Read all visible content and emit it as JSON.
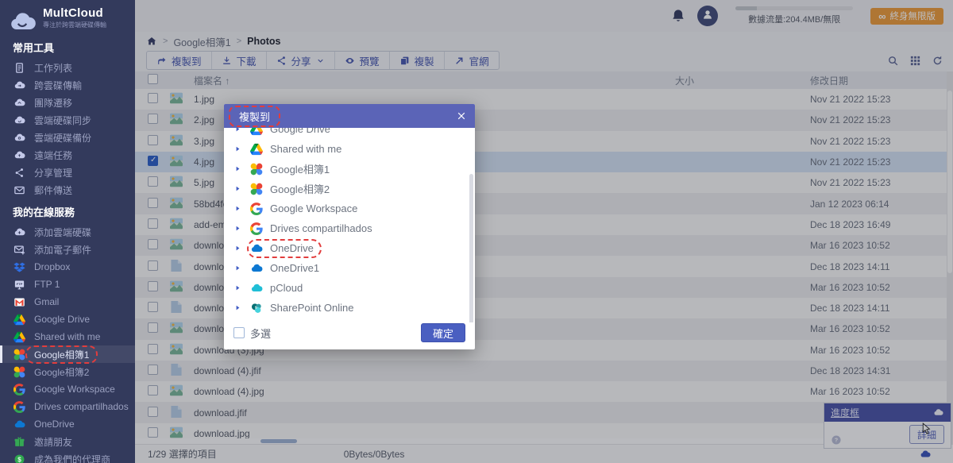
{
  "colors": {
    "sidebar_bg": "#333a5c",
    "accent_blue": "#4a5fc1",
    "modal_header": "#5b64b7",
    "annotation_red": "#e23d3d",
    "upgrade_orange": "#ed9d3d",
    "selected_row": "#d5e2f4"
  },
  "sidebar": {
    "logo_title": "MultCloud",
    "logo_subtitle": "專注於跨雲端硬碟傳輸",
    "sections": [
      {
        "title": "常用工具",
        "items": [
          {
            "icon": "clipboard",
            "label": "工作列表"
          },
          {
            "icon": "cloud-transfer",
            "label": "跨雲碟傳輸"
          },
          {
            "icon": "cloud-migrate",
            "label": "團隊遷移"
          },
          {
            "icon": "cloud-sync",
            "label": "雲端硬碟同步"
          },
          {
            "icon": "cloud-backup",
            "label": "雲端硬碟備份"
          },
          {
            "icon": "cloud-task",
            "label": "遠端任務"
          },
          {
            "icon": "share-nodes",
            "label": "分享管理"
          },
          {
            "icon": "mail-send",
            "label": "郵件傳送"
          }
        ]
      },
      {
        "title": "我的在線服務",
        "items": [
          {
            "icon": "cloud-add",
            "label": "添加雲端硬碟"
          },
          {
            "icon": "mail-add",
            "label": "添加電子郵件"
          },
          {
            "icon": "dropbox",
            "label": "Dropbox"
          },
          {
            "icon": "ftp",
            "label": "FTP 1"
          },
          {
            "icon": "gmail",
            "label": "Gmail"
          },
          {
            "icon": "gdrive",
            "label": "Google Drive"
          },
          {
            "icon": "gdrive",
            "label": "Shared with me"
          },
          {
            "icon": "gphotos",
            "label": "Google相簿1",
            "active": true,
            "annotated": true
          },
          {
            "icon": "gphotos",
            "label": "Google相簿2"
          },
          {
            "icon": "g",
            "label": "Google Workspace"
          },
          {
            "icon": "g",
            "label": "Drives compartilhados"
          },
          {
            "icon": "onedrive",
            "label": "OneDrive"
          },
          {
            "icon": "gift",
            "label": "邀請朋友"
          },
          {
            "icon": "dollar",
            "label": "成為我們的代理商"
          }
        ]
      }
    ]
  },
  "topbar": {
    "traffic_text": "數據流量:204.4MB/無限",
    "upgrade_label": "終身無限版",
    "infinity_symbol": "∞"
  },
  "breadcrumb": {
    "parent": "Google相簿1",
    "current": "Photos",
    "separator": ">"
  },
  "toolbar": {
    "buttons": [
      {
        "icon": "copyto",
        "label": "複製到"
      },
      {
        "icon": "download",
        "label": "下載"
      },
      {
        "icon": "share",
        "label": "分享",
        "chevron": true
      },
      {
        "icon": "preview",
        "label": "預覽"
      },
      {
        "icon": "copy",
        "label": "複製"
      },
      {
        "icon": "site",
        "label": "官網"
      }
    ]
  },
  "table": {
    "headers": {
      "name": "檔案名",
      "sort_arrow": "↑",
      "size": "大小",
      "date": "修改日期"
    },
    "rows": [
      {
        "icon": "image",
        "name": "1.jpg",
        "date": "Nov 21 2022 15:23"
      },
      {
        "icon": "image",
        "name": "2.jpg",
        "date": "Nov 21 2022 15:23"
      },
      {
        "icon": "image",
        "name": "3.jpg",
        "date": "Nov 21 2022 15:23"
      },
      {
        "icon": "image",
        "name": "4.jpg",
        "date": "Nov 21 2022 15:23",
        "selected": true
      },
      {
        "icon": "image",
        "name": "5.jpg",
        "date": "Nov 21 2022 15:23"
      },
      {
        "icon": "image",
        "name": "58bd4fc9ebfccc1f2de419529bbf1a12.jpg",
        "date": "Jan 12 2023 06:14"
      },
      {
        "icon": "image",
        "name": "add-email.png",
        "date": "Dec 18 2023 16:49"
      },
      {
        "icon": "image",
        "name": "download (1)-ANIMATION.gif",
        "date": "Mar 16 2023 10:52"
      },
      {
        "icon": "file",
        "name": "download (1).jfif",
        "date": "Dec 18 2023 14:11"
      },
      {
        "icon": "image",
        "name": "download (1).jpg",
        "date": "Mar 16 2023 10:52"
      },
      {
        "icon": "file",
        "name": "download (2).jfif",
        "date": "Dec 18 2023 14:11"
      },
      {
        "icon": "image",
        "name": "download (2).jpg",
        "date": "Mar 16 2023 10:52"
      },
      {
        "icon": "image",
        "name": "download (3).jpg",
        "date": "Mar 16 2023 10:52"
      },
      {
        "icon": "file",
        "name": "download (4).jfif",
        "date": "Dec 18 2023 14:31"
      },
      {
        "icon": "image",
        "name": "download (4).jpg",
        "date": "Mar 16 2023 10:52"
      },
      {
        "icon": "file",
        "name": "download.jfif",
        "date": ""
      },
      {
        "icon": "image",
        "name": "download.jpg",
        "date": ""
      }
    ]
  },
  "modal": {
    "title": "複製到",
    "items": [
      {
        "icon": "gdrive",
        "label": "Google Drive",
        "clipped": true
      },
      {
        "icon": "gdrive",
        "label": "Shared with me"
      },
      {
        "icon": "gphotos",
        "label": "Google相簿1"
      },
      {
        "icon": "gphotos",
        "label": "Google相簿2"
      },
      {
        "icon": "g",
        "label": "Google Workspace"
      },
      {
        "icon": "g",
        "label": "Drives compartilhados"
      },
      {
        "icon": "onedrive",
        "label": "OneDrive",
        "annotated": true
      },
      {
        "icon": "onedrive",
        "label": "OneDrive1"
      },
      {
        "icon": "pcloud",
        "label": "pCloud"
      },
      {
        "icon": "sharepoint",
        "label": "SharePoint Online"
      }
    ],
    "multi_select_label": "多選",
    "confirm_label": "確定"
  },
  "progress_box": {
    "title": "進度框",
    "detail_label": "詳細"
  },
  "statusbar": {
    "selected_text": "1/29 選擇的項目",
    "bytes_text": "0Bytes/0Bytes"
  }
}
